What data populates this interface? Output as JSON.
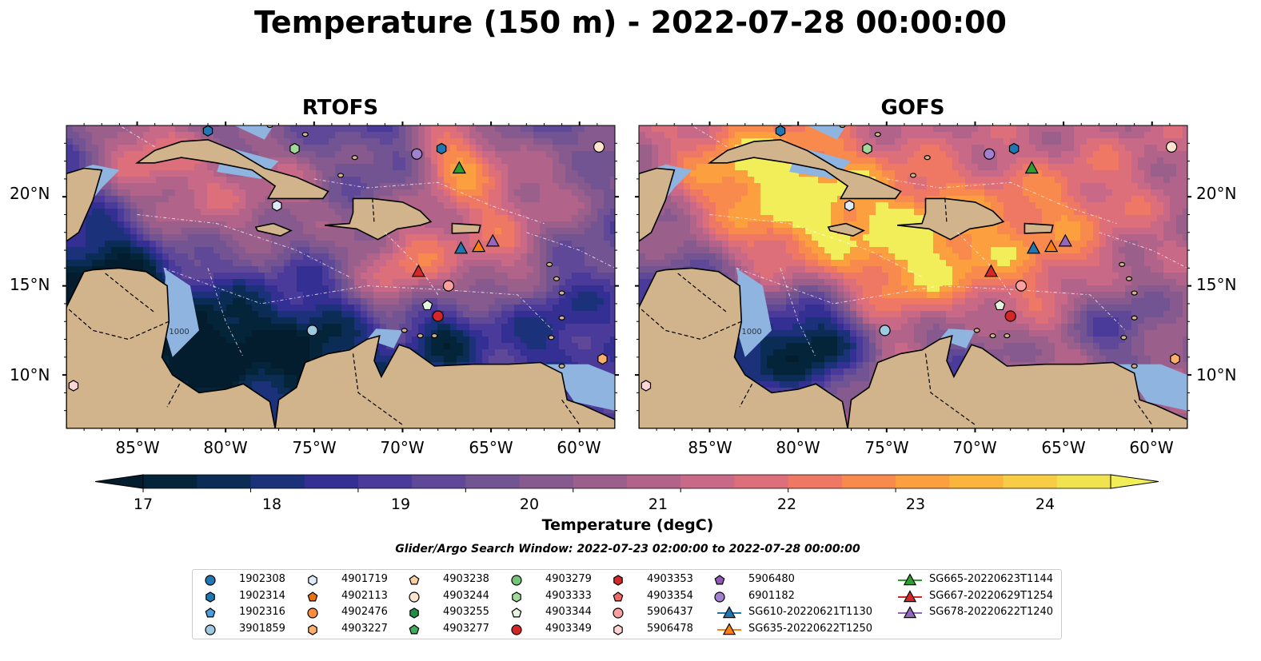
{
  "title": "Temperature (150 m) - 2022-07-28 00:00:00",
  "panels": [
    {
      "title": "RTOFS",
      "model": "rtofs"
    },
    {
      "title": "GOFS",
      "model": "gofs"
    }
  ],
  "map": {
    "lon_range": [
      -89,
      -58
    ],
    "lat_range": [
      7,
      24
    ],
    "lat_ticks": [
      {
        "value": 20,
        "label": "20°N"
      },
      {
        "value": 15,
        "label": "15°N"
      },
      {
        "value": 10,
        "label": "10°N"
      }
    ],
    "lon_ticks": [
      {
        "value": -85,
        "label": "85°W"
      },
      {
        "value": -80,
        "label": "80°W"
      },
      {
        "value": -75,
        "label": "75°W"
      },
      {
        "value": -70,
        "label": "70°W"
      },
      {
        "value": -65,
        "label": "65°W"
      },
      {
        "value": -60,
        "label": "60°W"
      }
    ],
    "contour_label": "1000",
    "land_color": "#d2b48c",
    "shelf_color": "#8fb4e0"
  },
  "colorbar": {
    "label": "Temperature (degC)",
    "min": 17,
    "max": 24.5,
    "step": 0.5,
    "ticks": [
      "17",
      "18",
      "19",
      "20",
      "21",
      "22",
      "23",
      "24"
    ],
    "extend": "both",
    "colormap": [
      "#04243a",
      "#0b2c55",
      "#1b3179",
      "#332f93",
      "#4a3a9a",
      "#5f4898",
      "#735493",
      "#86598f",
      "#9b5f8c",
      "#b2638a",
      "#c86987",
      "#dd6f7b",
      "#ee7863",
      "#f98a4e",
      "#fc9f3f",
      "#fbb53c",
      "#f8cc45",
      "#f1e34f"
    ]
  },
  "search_window": "Glider/Argo Search Window: 2022-07-23 02:00:00 to 2022-07-28 00:00:00",
  "legend": {
    "items": [
      {
        "label": "1902308",
        "marker": "circle",
        "color": "#1f77b4"
      },
      {
        "label": "1902314",
        "marker": "hexagon",
        "color": "#1f77b4"
      },
      {
        "label": "1902316",
        "marker": "pentagon",
        "color": "#4a9ede"
      },
      {
        "label": "3901859",
        "marker": "circle",
        "color": "#9ecae1"
      },
      {
        "label": "4901719",
        "marker": "hexagon",
        "color": "#deebf7"
      },
      {
        "label": "4902113",
        "marker": "pentagon",
        "color": "#e6730e"
      },
      {
        "label": "4902476",
        "marker": "circle",
        "color": "#fd8d3c"
      },
      {
        "label": "4903227",
        "marker": "hexagon",
        "color": "#fdae6b"
      },
      {
        "label": "4903238",
        "marker": "pentagon",
        "color": "#fdd0a2"
      },
      {
        "label": "4903244",
        "marker": "circle",
        "color": "#fee6ce"
      },
      {
        "label": "4903255",
        "marker": "hexagon",
        "color": "#238b45"
      },
      {
        "label": "4903277",
        "marker": "pentagon",
        "color": "#41ab5d"
      },
      {
        "label": "4903279",
        "marker": "circle",
        "color": "#74c476"
      },
      {
        "label": "4903333",
        "marker": "hexagon",
        "color": "#a1d99b"
      },
      {
        "label": "4903344",
        "marker": "pentagon",
        "color": "#e5f5e0"
      },
      {
        "label": "4903349",
        "marker": "circle",
        "color": "#d62728"
      },
      {
        "label": "4903353",
        "marker": "hexagon",
        "color": "#d62728"
      },
      {
        "label": "4903354",
        "marker": "pentagon",
        "color": "#f06a6a"
      },
      {
        "label": "5906437",
        "marker": "circle",
        "color": "#fc9f9f"
      },
      {
        "label": "5906478",
        "marker": "hexagon",
        "color": "#fdd5d5"
      },
      {
        "label": "5906480",
        "marker": "pentagon",
        "color": "#8e57b8"
      },
      {
        "label": "6901182",
        "marker": "circle",
        "color": "#a27fd1"
      },
      {
        "label": "SG610-20220621T1130",
        "marker": "triangle-line",
        "color": "#1f77b4"
      },
      {
        "label": "SG635-20220622T1250",
        "marker": "triangle-line",
        "color": "#ff7f0e"
      },
      {
        "label": "SG665-20220623T1144",
        "marker": "triangle-line",
        "color": "#2ca02c"
      },
      {
        "label": "SG667-20220629T1254",
        "marker": "triangle-line",
        "color": "#d62728"
      },
      {
        "label": "SG678-20220622T1240",
        "marker": "triangle-line",
        "color": "#9467bd"
      }
    ]
  },
  "observations": [
    {
      "id": "1902314",
      "lon": -81.0,
      "lat": 23.7
    },
    {
      "id": "4903333",
      "lon": -76.1,
      "lat": 22.7
    },
    {
      "id": "6901182",
      "lon": -69.2,
      "lat": 22.4
    },
    {
      "id": "1902314",
      "lon": -67.8,
      "lat": 22.7
    },
    {
      "id": "SG665-20220623T1144",
      "lon": -66.8,
      "lat": 21.6
    },
    {
      "id": "4903244",
      "lon": -58.9,
      "lat": 22.8
    },
    {
      "id": "4901719",
      "lon": -77.1,
      "lat": 19.5
    },
    {
      "id": "SG610-20220621T1130",
      "lon": -66.7,
      "lat": 17.1
    },
    {
      "id": "SG635-20220622T1250",
      "lon": -65.7,
      "lat": 17.2
    },
    {
      "id": "SG678-20220622T1240",
      "lon": -64.9,
      "lat": 17.5
    },
    {
      "id": "SG667-20220629T1254",
      "lon": -69.1,
      "lat": 15.8
    },
    {
      "id": "5906437",
      "lon": -67.4,
      "lat": 15.0
    },
    {
      "id": "4903344",
      "lon": -68.6,
      "lat": 13.9
    },
    {
      "id": "4903349",
      "lon": -68.0,
      "lat": 13.3
    },
    {
      "id": "3901859",
      "lon": -75.1,
      "lat": 12.5
    },
    {
      "id": "4903227",
      "lon": -58.7,
      "lat": 10.9
    },
    {
      "id": "5906478",
      "lon": -88.6,
      "lat": 9.4
    }
  ]
}
